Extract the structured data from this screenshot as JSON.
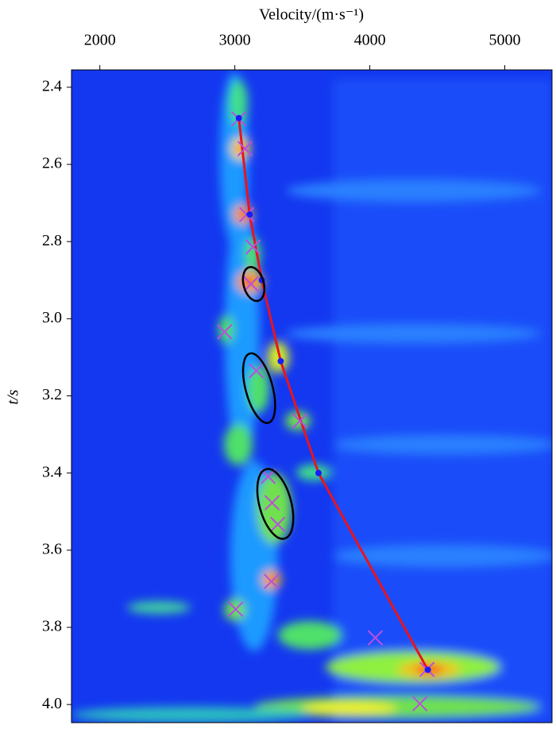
{
  "chart_data": {
    "type": "velocity-spectrum",
    "xlabel": "Velocity/(m·s⁻¹)",
    "ylabel": "t/s",
    "xlim": [
      1790,
      5350
    ],
    "ylim": [
      4.047,
      2.355
    ],
    "xticks": [
      2000,
      3000,
      4000,
      5000
    ],
    "yticks": [
      2.4,
      2.6,
      2.8,
      {
        "value": 3,
        "label": "3.0"
      },
      3.2,
      3.4,
      3.6,
      3.8,
      {
        "value": 4,
        "label": "4.0"
      }
    ],
    "picks": {
      "x": [
        3030,
        3110,
        3200,
        3340,
        3620,
        4430
      ],
      "values": [
        2.48,
        2.73,
        2.9,
        3.11,
        3.4,
        3.91
      ],
      "color": "#1a1aff",
      "line_color": "#e8141e"
    },
    "crosses": {
      "x": [
        3029,
        3076,
        3088,
        3135,
        3120,
        2924,
        3159,
        3482,
        3247,
        3276,
        3318,
        3271,
        3006,
        4041,
        4424,
        4371
      ],
      "values": [
        2.482,
        2.559,
        2.73,
        2.814,
        2.91,
        3.034,
        3.135,
        3.265,
        3.409,
        3.477,
        3.533,
        3.681,
        3.753,
        3.827,
        3.909,
        3.998
      ],
      "color": "#b94fe0"
    },
    "ellipses": {
      "x": [
        3140,
        3180,
        3300
      ],
      "values": [
        2.91,
        3.18,
        3.48
      ],
      "rx": [
        75,
        100,
        118
      ],
      "rt": [
        0.045,
        0.093,
        0.093
      ]
    }
  }
}
